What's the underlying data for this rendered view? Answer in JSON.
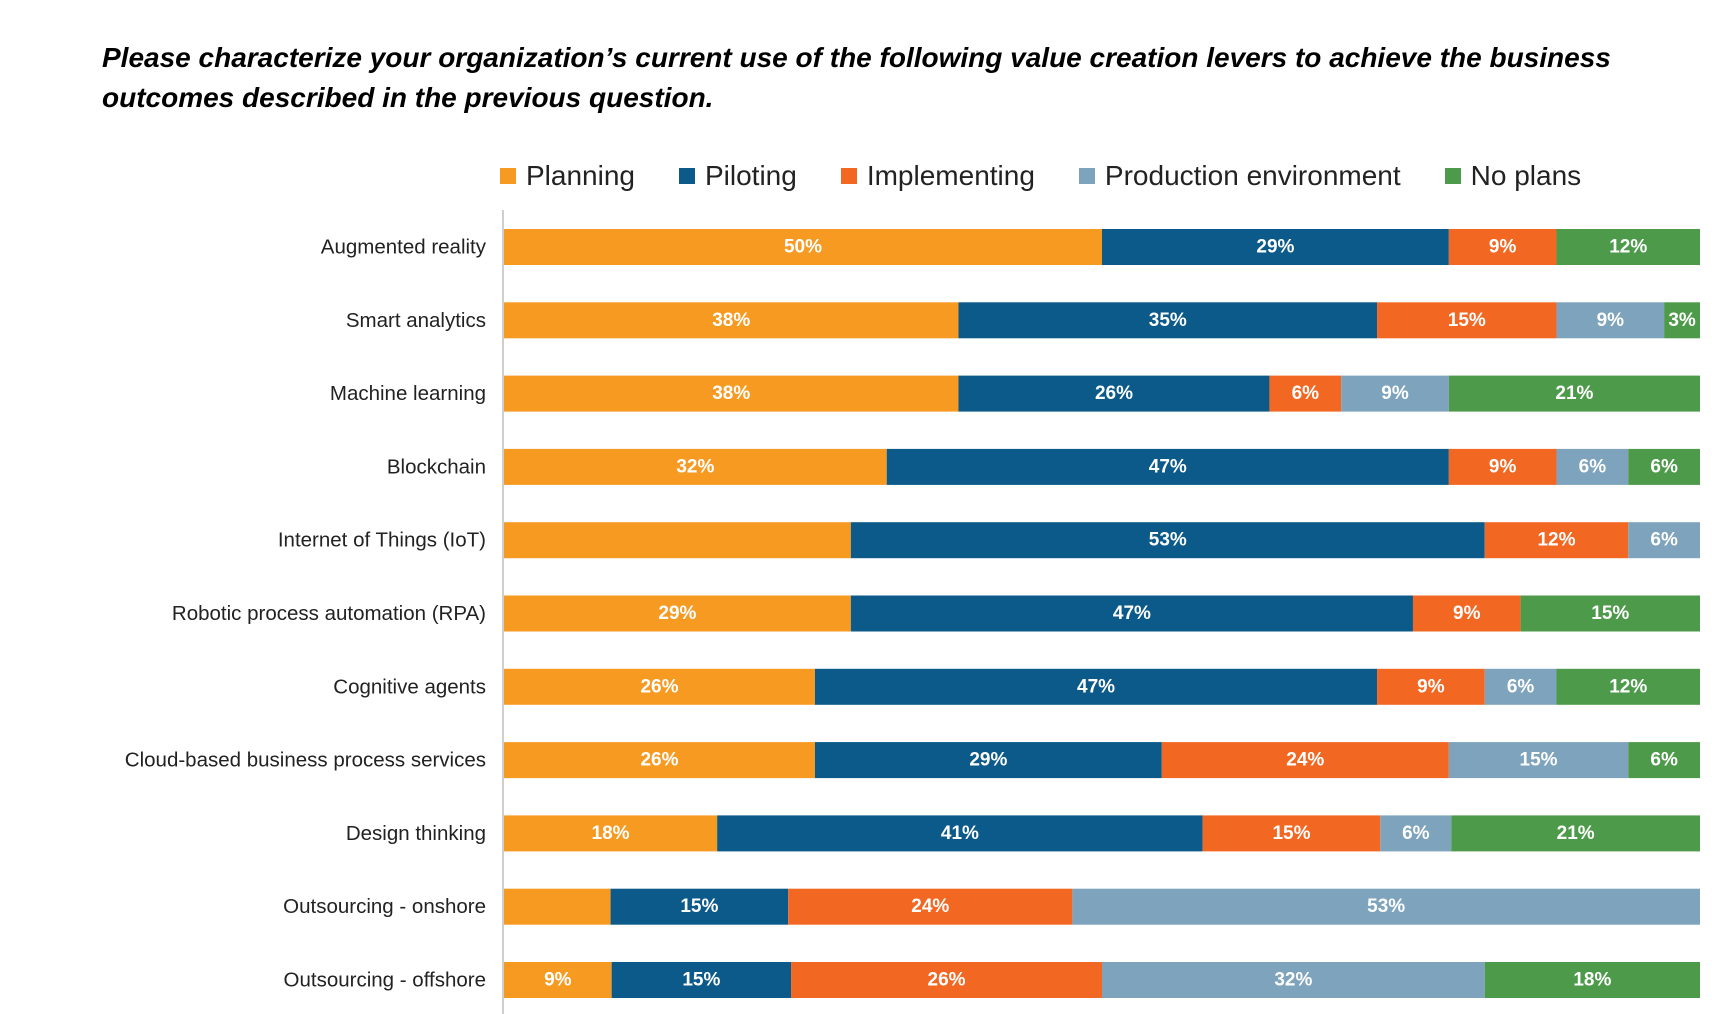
{
  "chart_data": {
    "type": "bar",
    "orientation": "horizontal",
    "stacked": true,
    "title": "Please characterize your organization’s current use of the following value creation levers to achieve the business outcomes described in the previous question.",
    "legend_position": "top",
    "grid": false,
    "xlim": [
      0,
      100
    ],
    "categories": [
      "Augmented reality",
      "Smart analytics",
      "Machine learning",
      "Blockchain",
      "Internet of Things (IoT)",
      "Robotic process automation (RPA)",
      "Cognitive agents",
      "Cloud-based business process services",
      "Design thinking",
      "Outsourcing - onshore",
      "Outsourcing - offshore"
    ],
    "series": [
      {
        "name": "Planning",
        "color": "#F79A22",
        "values": [
          50,
          38,
          38,
          32,
          29,
          29,
          26,
          26,
          18,
          9,
          9
        ],
        "labels": [
          "50%",
          "38%",
          "38%",
          "32%",
          "",
          "29%",
          "26%",
          "26%",
          "18%",
          "",
          "9%"
        ]
      },
      {
        "name": "Piloting",
        "color": "#0B5A8A",
        "values": [
          29,
          35,
          26,
          47,
          53,
          47,
          47,
          29,
          41,
          15,
          15
        ],
        "labels": [
          "29%",
          "35%",
          "26%",
          "47%",
          "53%",
          "47%",
          "47%",
          "29%",
          "41%",
          "15%",
          "15%"
        ]
      },
      {
        "name": "Implementing",
        "color": "#F26722",
        "values": [
          9,
          15,
          6,
          9,
          12,
          9,
          9,
          24,
          15,
          24,
          26
        ],
        "labels": [
          "9%",
          "15%",
          "6%",
          "9%",
          "12%",
          "9%",
          "9%",
          "24%",
          "15%",
          "24%",
          "26%"
        ]
      },
      {
        "name": "Production environment",
        "color": "#7EA3BC",
        "values": [
          0,
          9,
          9,
          6,
          6,
          0,
          6,
          15,
          6,
          53,
          32
        ],
        "labels": [
          "",
          "9%",
          "9%",
          "6%",
          "6%",
          "",
          "6%",
          "15%",
          "6%",
          "53%",
          "32%"
        ]
      },
      {
        "name": "No plans",
        "color": "#4E9A4B",
        "values": [
          12,
          3,
          21,
          6,
          0,
          15,
          12,
          6,
          21,
          0,
          18
        ],
        "labels": [
          "12%",
          "3%",
          "21%",
          "6%",
          "",
          "15%",
          "12%",
          "6%",
          "21%",
          "",
          "18%"
        ]
      }
    ]
  }
}
